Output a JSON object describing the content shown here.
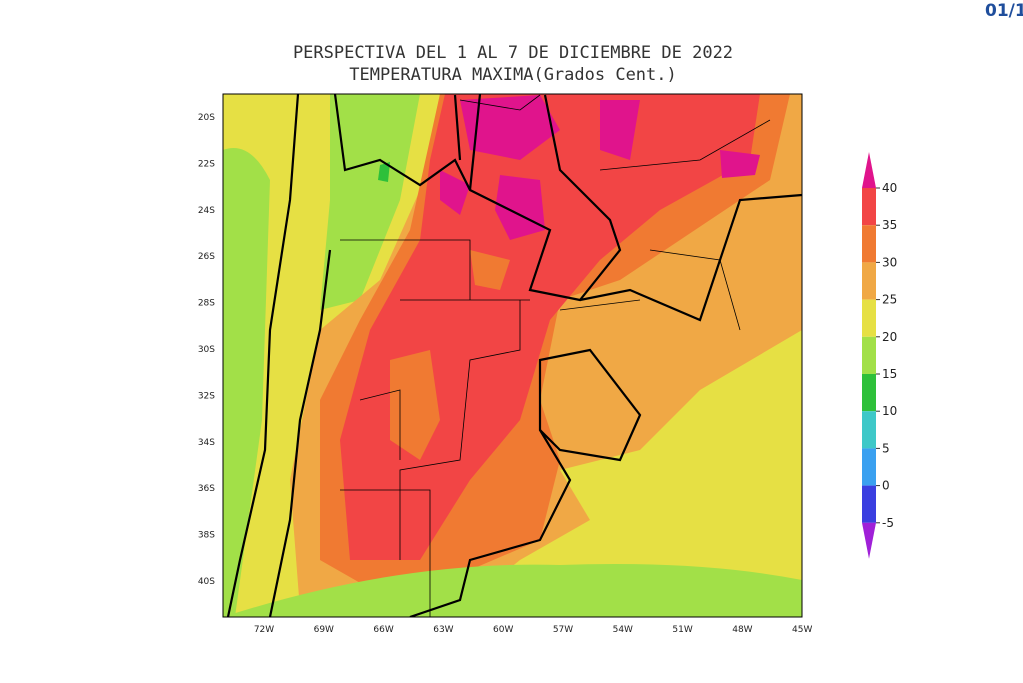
{
  "header": {
    "date_fragment": "01/1"
  },
  "title": [
    "PERSPECTIVA DEL 1 AL 7 DE DICIEMBRE DE 2022",
    "TEMPERATURA MAXIMA(Grados Cent.)"
  ],
  "lat_labels": [
    "20S",
    "22S",
    "24S",
    "26S",
    "28S",
    "30S",
    "32S",
    "34S",
    "36S",
    "38S",
    "40S"
  ],
  "lon_labels": [
    "72W",
    "69W",
    "66W",
    "63W",
    "60W",
    "57W",
    "54W",
    "51W",
    "48W",
    "45W"
  ],
  "colorbar": {
    "labels": [
      40,
      35,
      30,
      25,
      20,
      15,
      10,
      5,
      0,
      -5
    ],
    "colors": [
      "#e0148c",
      "#f24545",
      "#f07a32",
      "#f0a845",
      "#e6e044",
      "#a2e048",
      "#2ec03a",
      "#3ec8c8",
      "#3aa0f0",
      "#3a3ee0",
      "#a020d8"
    ]
  }
}
